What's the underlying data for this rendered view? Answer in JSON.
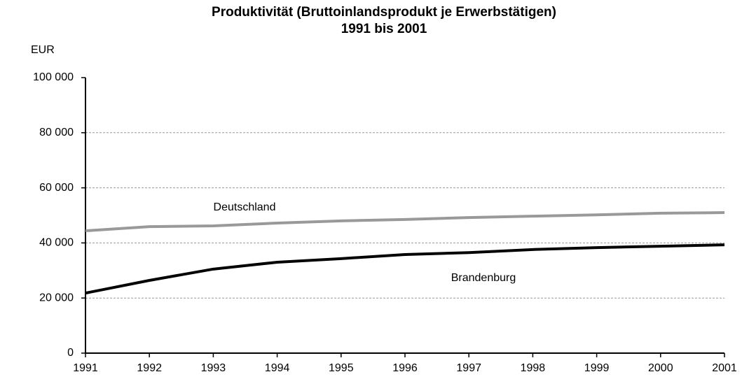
{
  "chart_data": {
    "type": "line",
    "title": "Produktivität (Bruttoinlandsprodukt je Erwerbstätigen)",
    "subtitle": "1991 bis 2001",
    "y_label": "EUR",
    "x": [
      1991,
      1992,
      1993,
      1994,
      1995,
      1996,
      1997,
      1998,
      1999,
      2000,
      2001
    ],
    "xlim": [
      1991,
      2001
    ],
    "xticks": [
      1991,
      1992,
      1993,
      1994,
      1995,
      1996,
      1997,
      1998,
      1999,
      2000,
      2001
    ],
    "ylim": [
      0,
      100000
    ],
    "yticks": [
      0,
      {
        "value": 20000,
        "label": "20 000"
      },
      {
        "value": 40000,
        "label": "40 000"
      },
      {
        "value": 60000,
        "label": "60 000"
      },
      {
        "value": 80000,
        "label": "80 000"
      },
      {
        "value": 100000,
        "label": "100 000"
      }
    ],
    "grid": true,
    "series": [
      {
        "name": "Deutschland",
        "color": "#999999",
        "values": [
          44400,
          45900,
          46200,
          47200,
          48000,
          48500,
          49200,
          49700,
          50200,
          50800,
          51000
        ]
      },
      {
        "name": "Brandenburg",
        "color": "#000000",
        "values": [
          21800,
          26400,
          30500,
          33000,
          34300,
          35800,
          36500,
          37600,
          38300,
          38800,
          39300
        ]
      }
    ]
  }
}
